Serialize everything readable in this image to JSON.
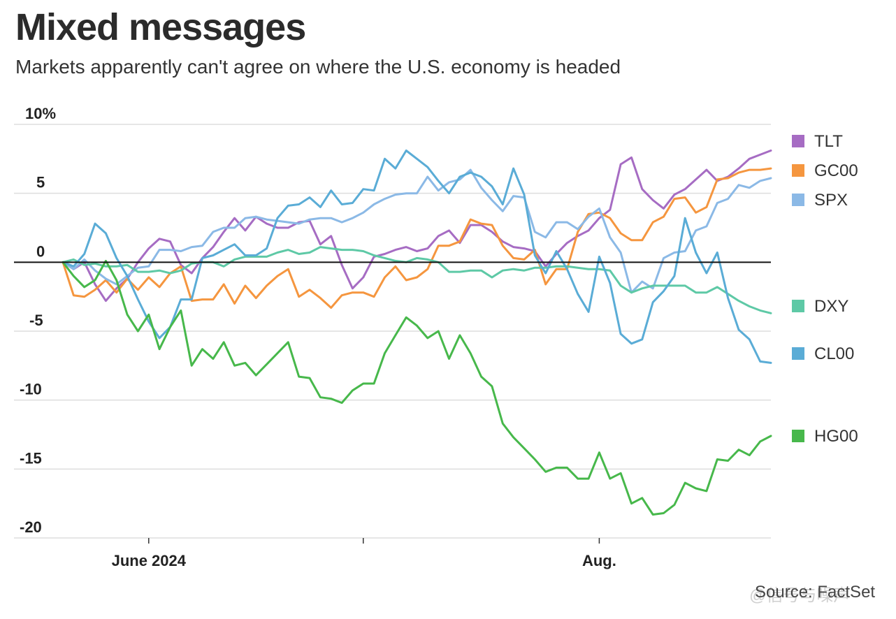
{
  "title": "Mixed messages",
  "subtitle": "Markets apparently can't agree on where the U.S. economy is headed",
  "source": "Source: FactSet",
  "watermark": "@信号与噪声",
  "chart_data": {
    "type": "line",
    "ylim": [
      -20,
      10
    ],
    "ytick_values": [
      10,
      5,
      0,
      -5,
      -10,
      -15,
      -20
    ],
    "ytick_labels": [
      "10%",
      "5",
      "0",
      "-5",
      "-10",
      "-15",
      "-20"
    ],
    "xlim": [
      0,
      66
    ],
    "xtick_positions": [
      8,
      28,
      50
    ],
    "xtick_labels": [
      "June 2024",
      "",
      "Aug."
    ],
    "zero_line": true,
    "grid": true,
    "legend_position": "right",
    "series": [
      {
        "name": "TLT",
        "color": "#a66cc3",
        "values": [
          0,
          -0.5,
          0,
          -1.6,
          -2.8,
          -1.9,
          -1.2,
          0,
          1,
          1.7,
          1.5,
          -0.2,
          -0.8,
          0.3,
          1.1,
          2.2,
          3.2,
          2.3,
          3.3,
          2.8,
          2.5,
          2.5,
          2.9,
          3.0,
          1.3,
          1.9,
          -0.2,
          -1.9,
          -1.1,
          0.4,
          0.6,
          0.9,
          1.1,
          0.8,
          1.0,
          1.9,
          2.3,
          1.4,
          2.7,
          2.7,
          2.2,
          1.5,
          1.1,
          1.0,
          0.8,
          -0.3,
          0.6,
          1.4,
          1.9,
          2.3,
          3.2,
          3.8,
          7.1,
          7.6,
          5.3,
          4.5,
          3.9,
          4.9,
          5.3,
          6.0,
          6.7,
          5.9,
          6.2,
          6.8,
          7.5,
          7.8,
          8.1
        ]
      },
      {
        "name": "GC00",
        "color": "#f5963f",
        "values": [
          0,
          -2.4,
          -2.5,
          -2.0,
          -1.3,
          -2.2,
          -1.2,
          -2.0,
          -1.1,
          -1.8,
          -0.8,
          -0.3,
          -2.8,
          -2.7,
          -2.7,
          -1.6,
          -3.0,
          -1.7,
          -2.6,
          -1.7,
          -1.0,
          -0.5,
          -2.5,
          -2.0,
          -2.6,
          -3.3,
          -2.4,
          -2.2,
          -2.2,
          -2.5,
          -1.1,
          -0.3,
          -1.3,
          -1.1,
          -0.5,
          1.2,
          1.2,
          1.5,
          3.1,
          2.8,
          2.7,
          1.2,
          0.3,
          0.2,
          0.9,
          -1.6,
          -0.5,
          -0.5,
          2.2,
          3.5,
          3.6,
          3.2,
          2.1,
          1.6,
          1.6,
          2.9,
          3.3,
          4.6,
          4.7,
          3.6,
          4.0,
          6.0,
          6.1,
          6.5,
          6.7,
          6.7,
          6.8
        ]
      },
      {
        "name": "SPX",
        "color": "#8bb9e6",
        "values": [
          0,
          -0.5,
          0.2,
          -0.6,
          -1.2,
          -1.6,
          -1.0,
          -0.4,
          -0.3,
          0.9,
          0.9,
          0.8,
          1.1,
          1.2,
          2.2,
          2.5,
          2.5,
          3.2,
          3.3,
          3.1,
          3.0,
          2.9,
          2.8,
          3.1,
          3.2,
          3.2,
          2.9,
          3.2,
          3.6,
          4.2,
          4.6,
          4.9,
          5.0,
          5.0,
          6.2,
          5.2,
          5.8,
          6.0,
          6.7,
          5.4,
          4.5,
          3.7,
          4.8,
          4.7,
          2.2,
          1.8,
          2.9,
          2.9,
          2.4,
          3.3,
          3.9,
          1.8,
          0.7,
          -2.2,
          -1.4,
          -1.9,
          0.3,
          0.7,
          0.8,
          2.3,
          2.6,
          4.3,
          4.6,
          5.6,
          5.4,
          5.9,
          6.1
        ]
      },
      {
        "name": "DXY",
        "color": "#5ec9a6",
        "values": [
          0,
          0.2,
          -0.2,
          -0.1,
          -0.3,
          -0.3,
          -0.2,
          -0.7,
          -0.7,
          -0.6,
          -0.8,
          -0.6,
          -0.1,
          0,
          0,
          -0.3,
          0.2,
          0.4,
          0.4,
          0.4,
          0.7,
          0.9,
          0.6,
          0.7,
          1.1,
          1.0,
          0.9,
          0.9,
          0.8,
          0.5,
          0.3,
          0.1,
          0,
          0.3,
          0.2,
          0,
          -0.7,
          -0.7,
          -0.6,
          -0.6,
          -1.1,
          -0.6,
          -0.5,
          -0.6,
          -0.4,
          -0.4,
          -0.3,
          -0.3,
          -0.4,
          -0.5,
          -0.5,
          -0.6,
          -1.7,
          -2.2,
          -1.9,
          -1.7,
          -1.7,
          -1.7,
          -1.7,
          -2.2,
          -2.2,
          -1.8,
          -2.3,
          -2.8,
          -3.2,
          -3.5,
          -3.7
        ]
      },
      {
        "name": "CL00",
        "color": "#5aacd6",
        "values": [
          0,
          -0.3,
          0.6,
          2.8,
          2.1,
          0.3,
          -1.0,
          -2.7,
          -4.3,
          -5.5,
          -4.7,
          -2.7,
          -2.7,
          0.3,
          0.5,
          0.9,
          1.3,
          0.5,
          0.5,
          1.0,
          3.2,
          4.1,
          4.2,
          4.7,
          4.0,
          5.2,
          4.2,
          4.3,
          5.3,
          5.2,
          7.5,
          6.8,
          8.1,
          7.5,
          6.9,
          5.9,
          5.0,
          6.2,
          6.5,
          6.2,
          5.5,
          4.2,
          6.8,
          4.9,
          0.5,
          -0.8,
          0.8,
          -0.5,
          -2.3,
          -3.6,
          0.4,
          -1.5,
          -5.2,
          -5.9,
          -5.6,
          -2.9,
          -2.1,
          -1.0,
          3.2,
          0.7,
          -0.8,
          0.7,
          -2.6,
          -4.9,
          -5.6,
          -7.2,
          -7.3
        ]
      },
      {
        "name": "HG00",
        "color": "#47b84b",
        "values": [
          0,
          -1.0,
          -1.8,
          -1.3,
          0.1,
          -1.3,
          -3.8,
          -5.0,
          -3.8,
          -6.3,
          -4.7,
          -3.5,
          -7.5,
          -6.3,
          -7.0,
          -5.8,
          -7.5,
          -7.3,
          -8.2,
          -7.4,
          -6.6,
          -5.8,
          -8.3,
          -8.4,
          -9.8,
          -9.9,
          -10.2,
          -9.3,
          -8.8,
          -8.8,
          -6.6,
          -5.3,
          -4.0,
          -4.6,
          -5.5,
          -5.0,
          -7.0,
          -5.3,
          -6.6,
          -8.3,
          -9.0,
          -11.7,
          -12.7,
          -13.5,
          -14.3,
          -15.2,
          -14.9,
          -14.9,
          -15.7,
          -15.7,
          -13.8,
          -15.7,
          -15.3,
          -17.5,
          -17.1,
          -18.3,
          -18.2,
          -17.6,
          -16.0,
          -16.4,
          -16.6,
          -14.3,
          -14.4,
          -13.6,
          -14.0,
          -13.0,
          -12.6
        ]
      }
    ]
  }
}
